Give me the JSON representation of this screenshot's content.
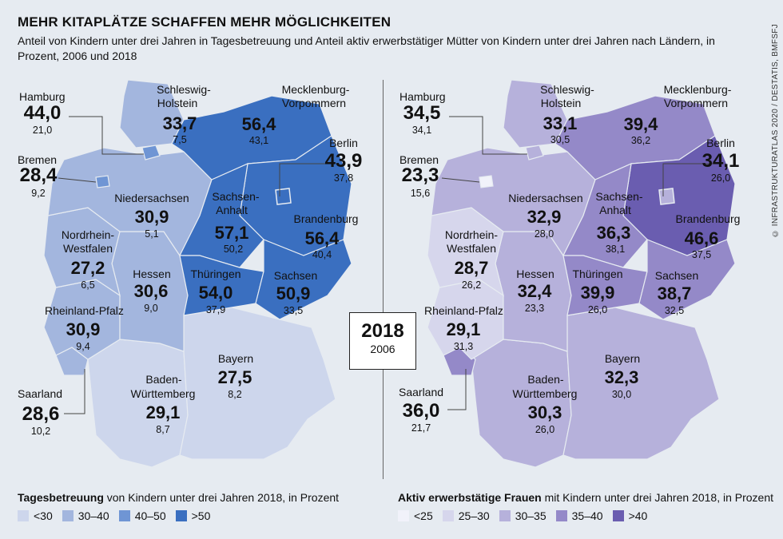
{
  "title": "MEHR KITAPLÄTZE SCHAFFEN MEHR MÖGLICHKEITEN",
  "subtitle": "Anteil von Kindern unter drei Jahren in Tagesbetreuung und Anteil aktiv erwerbstätiger Mütter von Kindern unter drei Jahren nach Ländern, in Prozent, 2006 und 2018",
  "source": "© INFRASTRUKTURATLAS 2020 / DESTATIS, BMFSFJ",
  "year_box": {
    "main": "2018",
    "sub": "2006"
  },
  "colors": {
    "left": [
      "#cdd6ec",
      "#a3b6de",
      "#6f95d4",
      "#3a6fc0"
    ],
    "right": [
      "#f1f2fa",
      "#d6d6ec",
      "#b6b1db",
      "#9489c8",
      "#6a5db0"
    ]
  },
  "left_map": {
    "states": [
      {
        "name": "Hamburg",
        "v2018": "44,0",
        "v2006": "21,0"
      },
      {
        "name": "Bremen",
        "v2018": "28,4",
        "v2006": "9,2"
      },
      {
        "name": "Schleswig-Holstein",
        "label1": "Schleswig-",
        "label2": "Holstein",
        "v2018": "33,7",
        "v2006": "7,5"
      },
      {
        "name": "Mecklenburg-Vorpommern",
        "label1": "Mecklenburg-",
        "label2": "Vorpommern",
        "v2018": "56,4",
        "v2006": "43,1"
      },
      {
        "name": "Berlin",
        "v2018": "43,9",
        "v2006": "37,8"
      },
      {
        "name": "Niedersachsen",
        "v2018": "30,9",
        "v2006": "5,1"
      },
      {
        "name": "Sachsen-Anhalt",
        "label1": "Sachsen-",
        "label2": "Anhalt",
        "v2018": "57,1",
        "v2006": "50,2"
      },
      {
        "name": "Brandenburg",
        "v2018": "56,4",
        "v2006": "40,4"
      },
      {
        "name": "Nordrhein-Westfalen",
        "label1": "Nordrhein-",
        "label2": "Westfalen",
        "v2018": "27,2",
        "v2006": "6,5"
      },
      {
        "name": "Hessen",
        "v2018": "30,6",
        "v2006": "9,0"
      },
      {
        "name": "Thüringen",
        "v2018": "54,0",
        "v2006": "37,9"
      },
      {
        "name": "Sachsen",
        "v2018": "50,9",
        "v2006": "33,5"
      },
      {
        "name": "Rheinland-Pfalz",
        "v2018": "30,9",
        "v2006": "9,4"
      },
      {
        "name": "Bayern",
        "v2018": "27,5",
        "v2006": "8,2"
      },
      {
        "name": "Baden-Württemberg",
        "label1": "Baden-",
        "label2": "Württemberg",
        "v2018": "29,1",
        "v2006": "8,7"
      },
      {
        "name": "Saarland",
        "v2018": "28,6",
        "v2006": "10,2"
      }
    ],
    "legend_title_bold": "Tagesbetreuung",
    "legend_title_rest": " von Kindern unter drei Jahren 2018, in Prozent",
    "legend": [
      "<30",
      "30–40",
      "40–50",
      ">50"
    ]
  },
  "right_map": {
    "states": [
      {
        "name": "Hamburg",
        "v2018": "34,5",
        "v2006": "34,1"
      },
      {
        "name": "Bremen",
        "v2018": "23,3",
        "v2006": "15,6"
      },
      {
        "name": "Schleswig-Holstein",
        "label1": "Schleswig-",
        "label2": "Holstein",
        "v2018": "33,1",
        "v2006": "30,5"
      },
      {
        "name": "Mecklenburg-Vorpommern",
        "label1": "Mecklenburg-",
        "label2": "Vorpommern",
        "v2018": "39,4",
        "v2006": "36,2"
      },
      {
        "name": "Berlin",
        "v2018": "34,1",
        "v2006": "26,0"
      },
      {
        "name": "Niedersachsen",
        "v2018": "32,9",
        "v2006": "28,0"
      },
      {
        "name": "Sachsen-Anhalt",
        "label1": "Sachsen-",
        "label2": "Anhalt",
        "v2018": "36,3",
        "v2006": "38,1"
      },
      {
        "name": "Brandenburg",
        "v2018": "46,6",
        "v2006": "37,5"
      },
      {
        "name": "Nordrhein-Westfalen",
        "label1": "Nordrhein-",
        "label2": "Westfalen",
        "v2018": "28,7",
        "v2006": "26,2"
      },
      {
        "name": "Hessen",
        "v2018": "32,4",
        "v2006": "23,3"
      },
      {
        "name": "Thüringen",
        "v2018": "39,9",
        "v2006": "26,0"
      },
      {
        "name": "Sachsen",
        "v2018": "38,7",
        "v2006": "32,5"
      },
      {
        "name": "Rheinland-Pfalz",
        "v2018": "29,1",
        "v2006": "31,3"
      },
      {
        "name": "Bayern",
        "v2018": "32,3",
        "v2006": "30,0"
      },
      {
        "name": "Baden-Württemberg",
        "label1": "Baden-",
        "label2": "Württemberg",
        "v2018": "30,3",
        "v2006": "26,0"
      },
      {
        "name": "Saarland",
        "v2018": "36,0",
        "v2006": "21,7"
      }
    ],
    "legend_title_bold": "Aktiv erwerbstätige Frauen",
    "legend_title_rest": " mit Kindern unter drei Jahren 2018, in Prozent",
    "legend": [
      "<25",
      "25–30",
      "30–35",
      "35–40",
      ">40"
    ]
  }
}
